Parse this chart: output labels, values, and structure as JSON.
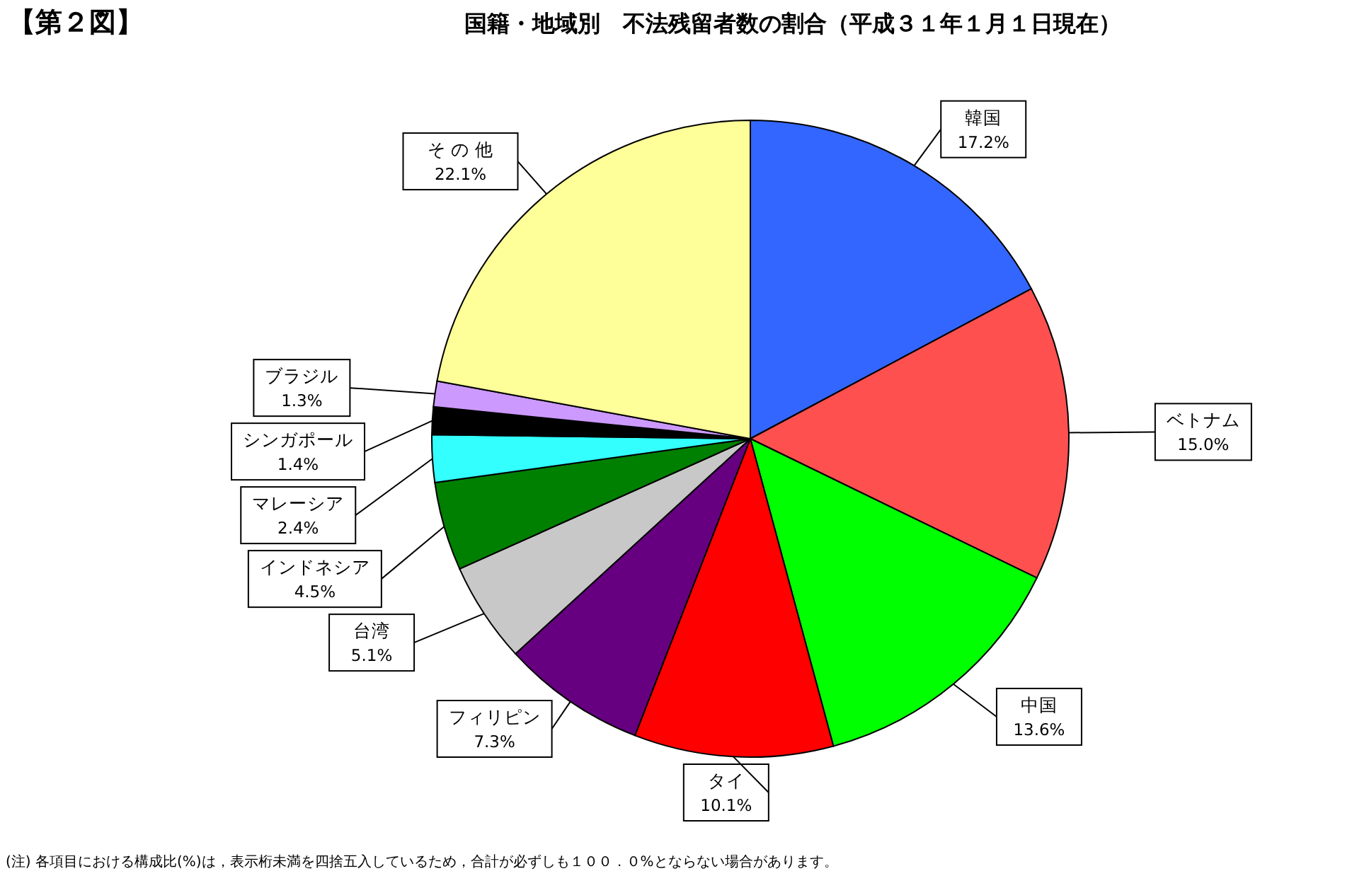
{
  "chart_data": {
    "type": "pie",
    "title": "国籍・地域別　不法残留者数の割合（平成３１年１月１日現在）",
    "annotations": [
      "【第２図】",
      "(注) 各項目における構成比(%)は，表示桁未満を四捨五入しているため，合計が必ずしも１００．０%とならない場合があります。"
    ],
    "categories": [
      "韓国",
      "ベトナム",
      "中国",
      "タイ",
      "フィリピン",
      "台湾",
      "インドネシア",
      "マレーシア",
      "シンガポール",
      "ブラジル",
      "そ の 他"
    ],
    "values": [
      17.2,
      15.0,
      13.6,
      10.1,
      7.3,
      5.1,
      4.5,
      2.4,
      1.4,
      1.3,
      22.1
    ],
    "value_labels": [
      "17.2%",
      "15.0%",
      "13.6%",
      "10.1%",
      "7.3%",
      "5.1%",
      "4.5%",
      "2.4%",
      "1.4%",
      "1.3%",
      "22.1%"
    ],
    "colors": [
      "#3366ff",
      "#ff5050",
      "#00ff00",
      "#ff0000",
      "#660080",
      "#c8c8c8",
      "#008000",
      "#33ffff",
      "#000000",
      "#cc99ff",
      "#ffff99"
    ]
  }
}
